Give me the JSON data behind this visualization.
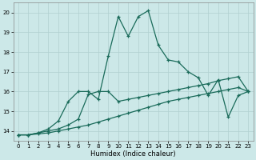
{
  "xlabel": "Humidex (Indice chaleur)",
  "bg_color": "#cce8e8",
  "line_color": "#1a6b5a",
  "grid_color": "#b0d0d0",
  "xlim": [
    -0.5,
    23.5
  ],
  "ylim": [
    13.5,
    20.5
  ],
  "yticks": [
    14,
    15,
    16,
    17,
    18,
    19,
    20
  ],
  "xticks": [
    0,
    1,
    2,
    3,
    4,
    5,
    6,
    7,
    8,
    9,
    10,
    11,
    12,
    13,
    14,
    15,
    16,
    17,
    18,
    19,
    20,
    21,
    22,
    23
  ],
  "series_wavy_x": [
    0,
    1,
    2,
    3,
    4,
    5,
    6,
    7,
    8,
    9,
    10,
    11,
    12,
    13,
    14,
    15,
    16,
    17,
    18,
    19,
    20,
    21,
    22,
    23
  ],
  "series_wavy_y": [
    13.8,
    13.8,
    13.9,
    14.1,
    14.5,
    15.5,
    16.0,
    16.0,
    15.6,
    17.8,
    19.8,
    18.8,
    19.8,
    20.1,
    18.35,
    17.6,
    17.5,
    17.0,
    16.7,
    15.8,
    16.6,
    14.7,
    15.8,
    16.0
  ],
  "series_upper_x": [
    0,
    1,
    2,
    3,
    4,
    5,
    6,
    7,
    8,
    9,
    10,
    11,
    12,
    13,
    14,
    15,
    16,
    17,
    18,
    19,
    20,
    21,
    22,
    23
  ],
  "series_upper_y": [
    13.8,
    13.8,
    13.9,
    14.0,
    14.1,
    14.3,
    14.6,
    15.85,
    16.0,
    16.0,
    15.5,
    15.6,
    15.7,
    15.8,
    15.9,
    16.0,
    16.1,
    16.2,
    16.3,
    16.4,
    16.55,
    16.65,
    16.75,
    16.0
  ],
  "series_lower_x": [
    0,
    1,
    2,
    3,
    4,
    5,
    6,
    7,
    8,
    9,
    10,
    11,
    12,
    13,
    14,
    15,
    16,
    17,
    18,
    19,
    20,
    21,
    22,
    23
  ],
  "series_lower_y": [
    13.8,
    13.8,
    13.85,
    13.9,
    14.0,
    14.1,
    14.2,
    14.3,
    14.45,
    14.6,
    14.75,
    14.9,
    15.05,
    15.2,
    15.35,
    15.5,
    15.6,
    15.7,
    15.8,
    15.9,
    16.0,
    16.1,
    16.2,
    16.0
  ]
}
